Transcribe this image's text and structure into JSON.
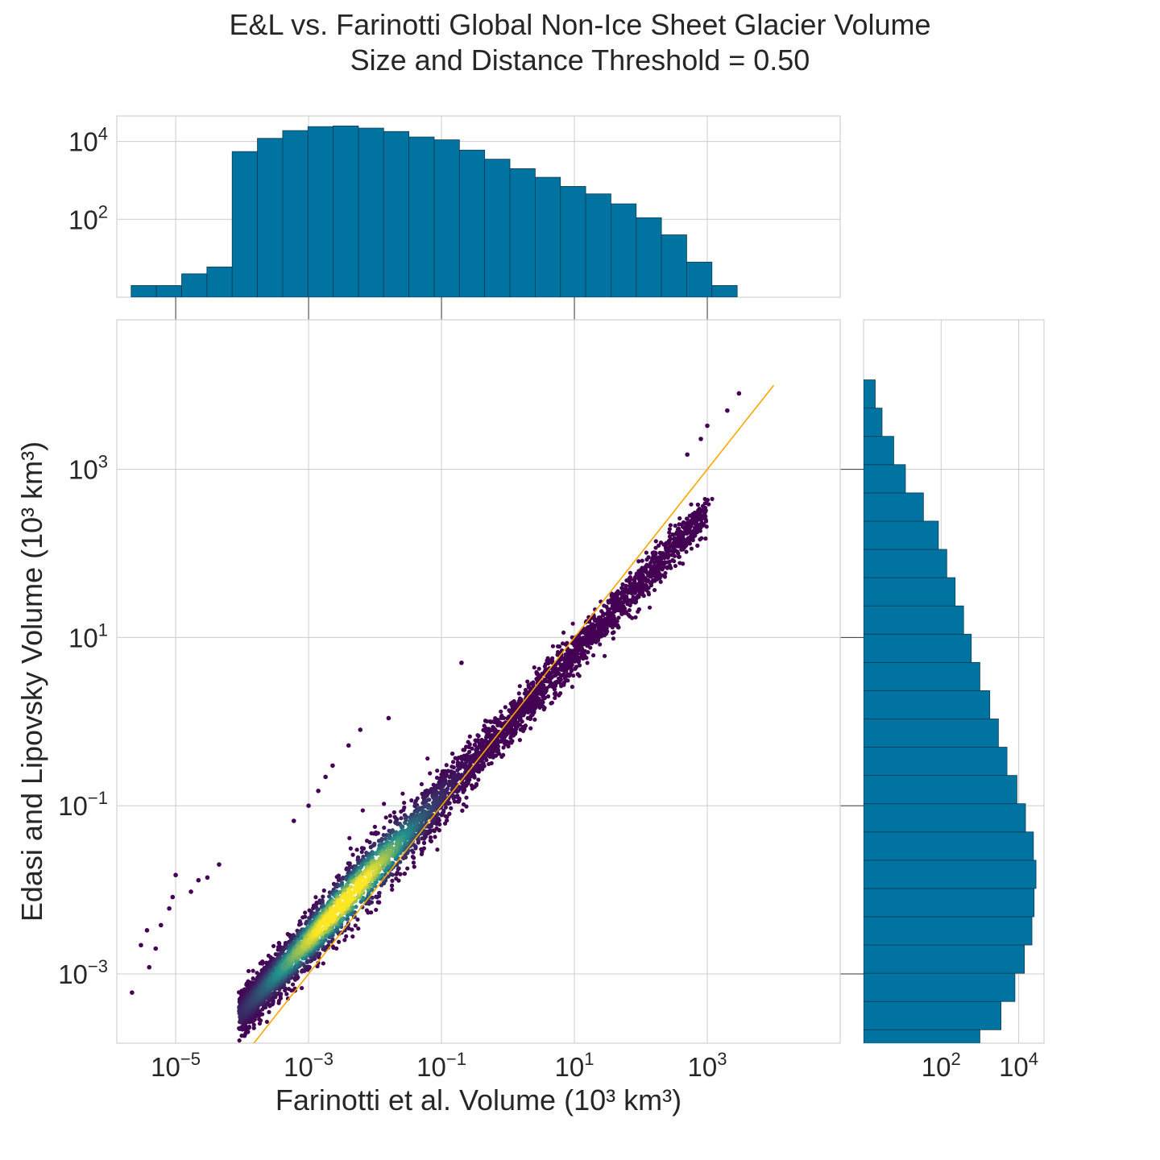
{
  "figure": {
    "title_line1": "E&L vs. Farinotti Global Non-Ice Sheet Glacier Volume",
    "title_line2": "Size and Distance Threshold = 0.50"
  },
  "colors": {
    "hist_fill": "#0173a1",
    "hist_edge": "#0d3b52",
    "identity_line": "#ffa500",
    "grid": "#cccccc",
    "axes_edge": "#d0d0d0",
    "scatter_low": "#440154",
    "scatter_mid": "#21918c",
    "scatter_high": "#fde725"
  },
  "chart_data": [
    {
      "id": "joint",
      "type": "scatter",
      "xlabel": "Farinotti et al. Volume (10³ km³)",
      "ylabel": "Edasi and Lipovsky Volume (10³ km³)",
      "xscale": "log",
      "yscale": "log",
      "xlim": [
        1.3e-06,
        100000.0
      ],
      "ylim": [
        0.00015,
        60000.0
      ],
      "x_tick_exponents": [
        -5,
        -3,
        -1,
        1,
        3
      ],
      "y_tick_exponents": [
        -3,
        -1,
        1,
        3
      ],
      "grid": true,
      "color_by": "point density (viridis)",
      "identity_line": {
        "x": [
          0.0001,
          10000
        ],
        "y": [
          0.0001,
          10000
        ]
      },
      "outliers": [
        {
          "x": 2.2e-06,
          "y": 0.0006
        },
        {
          "x": 3e-06,
          "y": 0.0022
        },
        {
          "x": 4e-06,
          "y": 0.0012
        },
        {
          "x": 3.7e-06,
          "y": 0.0033
        },
        {
          "x": 5e-06,
          "y": 0.002
        },
        {
          "x": 6e-06,
          "y": 0.0038
        },
        {
          "x": 8e-06,
          "y": 0.006
        },
        {
          "x": 9e-06,
          "y": 0.0082
        },
        {
          "x": 1e-05,
          "y": 0.015
        },
        {
          "x": 1.7e-05,
          "y": 0.0095
        },
        {
          "x": 2.2e-05,
          "y": 0.013
        },
        {
          "x": 3e-05,
          "y": 0.014
        },
        {
          "x": 4.5e-05,
          "y": 0.02
        },
        {
          "x": 0.0006,
          "y": 0.066
        },
        {
          "x": 0.001,
          "y": 0.1
        },
        {
          "x": 0.0014,
          "y": 0.15
        },
        {
          "x": 0.0018,
          "y": 0.22
        },
        {
          "x": 0.0023,
          "y": 0.3
        },
        {
          "x": 0.004,
          "y": 0.52
        },
        {
          "x": 0.006,
          "y": 0.8
        },
        {
          "x": 0.016,
          "y": 1.1
        },
        {
          "x": 0.2,
          "y": 5.0
        },
        {
          "x": 500,
          "y": 1500
        },
        {
          "x": 800,
          "y": 2300
        },
        {
          "x": 1000,
          "y": 3300
        },
        {
          "x": 2000,
          "y": 5000
        },
        {
          "x": 3000,
          "y": 8000
        }
      ]
    },
    {
      "id": "marginal-x",
      "type": "bar",
      "orientation": "vertical",
      "variable": "Farinotti et al. Volume",
      "bin_edges_log10": [
        -5.67,
        -5.29,
        -4.91,
        -4.53,
        -4.15,
        -3.77,
        -3.39,
        -3.01,
        -2.63,
        -2.25,
        -1.87,
        -1.49,
        -1.11,
        -0.73,
        -0.35,
        0.03,
        0.41,
        0.79,
        1.17,
        1.55,
        1.93,
        2.31,
        2.69,
        3.07,
        3.45
      ],
      "counts": [
        2,
        2,
        4,
        6,
        5500,
        12000,
        19000,
        24000,
        25000,
        22000,
        18000,
        13000,
        11000,
        6000,
        3500,
        2000,
        1200,
        700,
        450,
        250,
        110,
        40,
        8,
        2
      ],
      "yscale": "log",
      "ylim": [
        1,
        45000
      ],
      "y_tick_exponents": [
        2,
        4
      ],
      "grid": true
    },
    {
      "id": "marginal-y",
      "type": "bar",
      "orientation": "horizontal",
      "variable": "Edasi and Lipovsky Volume",
      "bin_edges_log10": [
        -4.0,
        -3.664,
        -3.328,
        -2.992,
        -2.656,
        -2.32,
        -1.984,
        -1.648,
        -1.312,
        -0.976,
        -0.64,
        -0.304,
        0.032,
        0.368,
        0.704,
        1.04,
        1.376,
        1.712,
        2.048,
        2.384,
        2.72,
        3.056,
        3.392,
        3.728,
        4.064
      ],
      "counts": [
        1000,
        3500,
        8000,
        14000,
        22000,
        25000,
        28000,
        24000,
        15000,
        9000,
        5000,
        3000,
        1800,
        1000,
        600,
        380,
        230,
        140,
        85,
        35,
        12,
        6,
        3,
        2
      ],
      "xscale": "log",
      "xlim": [
        1,
        45000
      ],
      "x_tick_exponents": [
        2,
        4
      ],
      "grid": true
    }
  ]
}
